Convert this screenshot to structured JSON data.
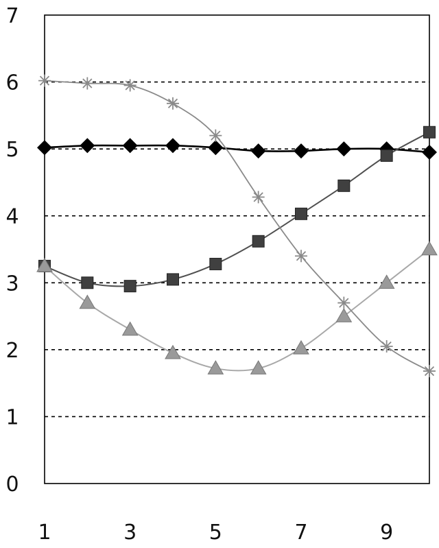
{
  "chart_data": {
    "type": "line",
    "title": "",
    "xlabel": "",
    "ylabel": "",
    "x": [
      1,
      2,
      3,
      4,
      5,
      6,
      7,
      8,
      9,
      10
    ],
    "xlim": [
      1,
      10
    ],
    "ylim": [
      0,
      7
    ],
    "x_ticks": [
      "1",
      "3",
      "5",
      "7",
      "9"
    ],
    "y_ticks": [
      "0",
      "1",
      "2",
      "3",
      "4",
      "5",
      "6",
      "7"
    ],
    "grid": "horizontal dashed",
    "legend": "none",
    "series": [
      {
        "marker": "diamond",
        "color": "#000000",
        "values": [
          5.02,
          5.05,
          5.05,
          5.05,
          5.02,
          4.97,
          4.97,
          5.0,
          5.0,
          4.95
        ]
      },
      {
        "marker": "square",
        "color": "#404040",
        "values": [
          3.25,
          3.0,
          2.95,
          3.05,
          3.28,
          3.62,
          4.03,
          4.45,
          4.9,
          5.25
        ]
      },
      {
        "marker": "triangle",
        "color": "#9a9a9a",
        "values": [
          3.25,
          2.7,
          2.3,
          1.95,
          1.72,
          1.72,
          2.02,
          2.5,
          3.0,
          3.5
        ]
      },
      {
        "marker": "star",
        "color": "#8a8a8a",
        "values": [
          6.02,
          5.98,
          5.95,
          5.68,
          5.2,
          4.28,
          3.4,
          2.7,
          2.05,
          1.68
        ]
      }
    ]
  }
}
